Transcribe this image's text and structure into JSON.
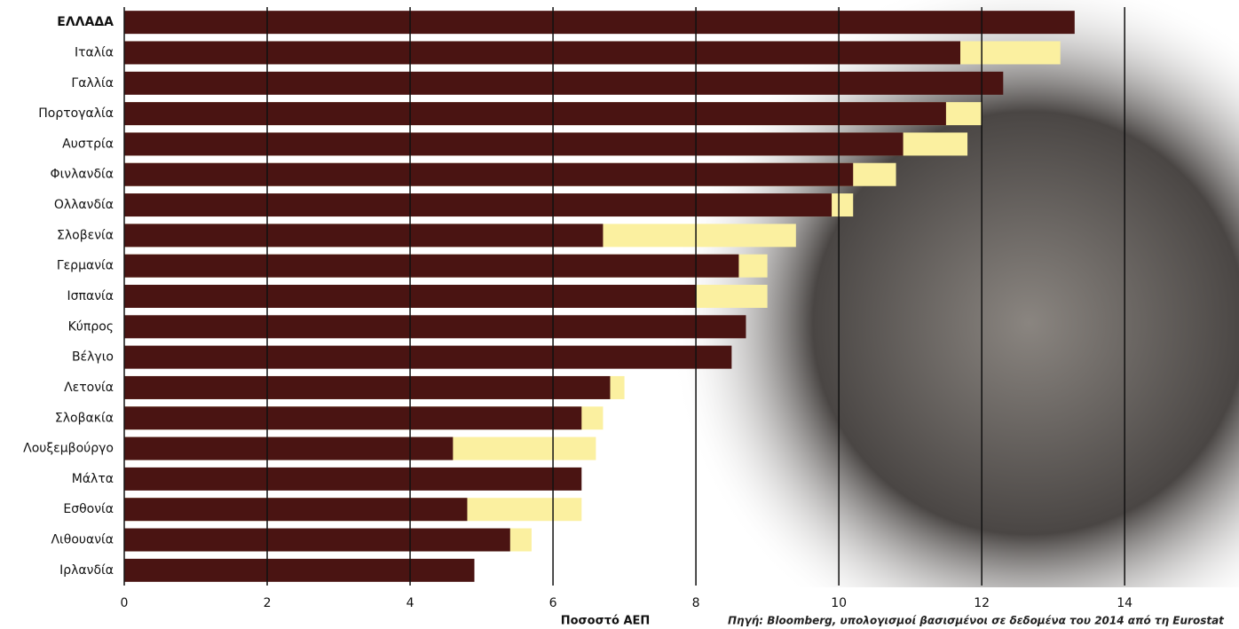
{
  "chart_data": {
    "type": "bar",
    "orientation": "horizontal",
    "x_label": "Ποσοστό ΑΕΠ",
    "source": "Πηγή: Bloomberg, υπολογισμοί βασισμένοι σε δεδομένα του 2014 από τη Eurostat",
    "categories": [
      "ΕΛΛΑΔΑ",
      "Ιταλία",
      "Γαλλία",
      "Πορτογαλία",
      "Αυστρία",
      "Φινλανδία",
      "Ολλανδία",
      "Σλοβενία",
      "Γερμανία",
      "Ισπανία",
      "Κύπρος",
      "Βέλγιο",
      "Λετονία",
      "Σλοβακία",
      "Λουξεμβούργο",
      "Μάλτα",
      "Εσθονία",
      "Λιθουανία",
      "Ιρλανδία"
    ],
    "series": [
      {
        "color": "#fbf0a0",
        "values": [
          null,
          13.1,
          null,
          12.0,
          11.8,
          10.8,
          10.2,
          9.4,
          9.0,
          9.0,
          null,
          null,
          7.0,
          6.7,
          6.6,
          null,
          6.4,
          5.7,
          null
        ]
      },
      {
        "color": "#4a1412",
        "values": [
          13.3,
          11.7,
          12.3,
          11.5,
          10.9,
          10.2,
          9.9,
          6.7,
          8.6,
          8.0,
          8.7,
          8.5,
          6.8,
          6.4,
          4.6,
          6.4,
          4.8,
          5.4,
          4.9
        ]
      }
    ],
    "xlim": [
      0,
      15.6
    ],
    "xticks": [
      0,
      2,
      4,
      6,
      8,
      10,
      12,
      14
    ],
    "grid": true
  }
}
